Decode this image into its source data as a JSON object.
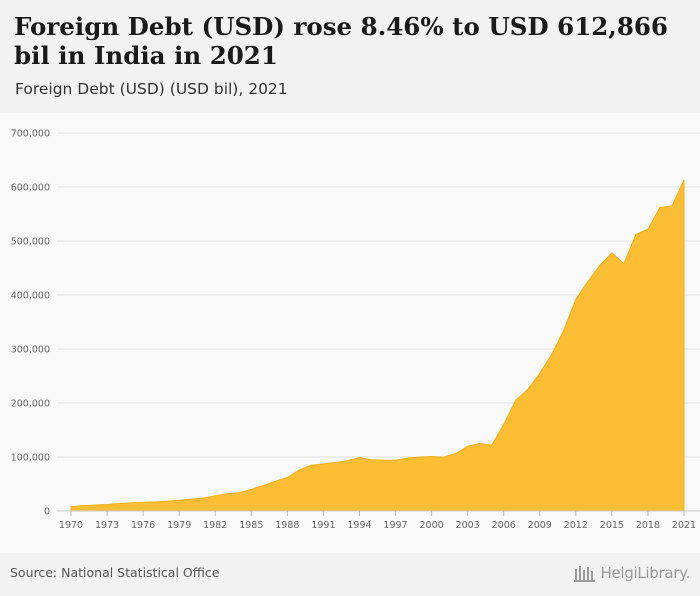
{
  "header": {
    "title": "Foreign Debt (USD) rose 8.46% to USD 612,866 bil in India in 2021",
    "subtitle": "Foreign Debt (USD) (USD bil), 2021"
  },
  "footer": {
    "source": "Source: National Statistical Office",
    "logo_text": "HelgiLibrary."
  },
  "colors": {
    "area_fill": "#fbbd33",
    "area_stroke": "#f5b11d",
    "grid": "#e3e3e3"
  },
  "chart_data": {
    "type": "area",
    "ylim": [
      0,
      700000
    ],
    "y_ticks": [
      0,
      100000,
      200000,
      300000,
      400000,
      500000,
      600000,
      700000
    ],
    "y_tick_labels": [
      "0",
      "100,000",
      "200,000",
      "300,000",
      "400,000",
      "500,000",
      "600,000",
      "700,000"
    ],
    "x_tick_labels": [
      "1970",
      "1973",
      "1976",
      "1979",
      "1982",
      "1985",
      "1988",
      "1991",
      "1994",
      "1997",
      "2000",
      "2003",
      "2006",
      "2009",
      "2012",
      "2015",
      "2018",
      "2021"
    ],
    "x": [
      1970,
      1971,
      1972,
      1973,
      1974,
      1975,
      1976,
      1977,
      1978,
      1979,
      1980,
      1981,
      1982,
      1983,
      1984,
      1985,
      1986,
      1987,
      1988,
      1989,
      1990,
      1991,
      1992,
      1993,
      1994,
      1995,
      1996,
      1997,
      1998,
      1999,
      2000,
      2001,
      2002,
      2003,
      2004,
      2005,
      2006,
      2007,
      2008,
      2009,
      2010,
      2011,
      2012,
      2013,
      2014,
      2015,
      2016,
      2017,
      2018,
      2019,
      2020,
      2021
    ],
    "values": [
      8000,
      10000,
      11000,
      12000,
      14000,
      15000,
      16000,
      17000,
      18000,
      20000,
      22000,
      24000,
      28000,
      32000,
      34000,
      40000,
      47000,
      55000,
      62000,
      76000,
      85000,
      87000,
      90000,
      93000,
      99000,
      95000,
      94000,
      94000,
      98000,
      100000,
      101000,
      100000,
      106000,
      120000,
      125000,
      122000,
      160000,
      205000,
      225000,
      255000,
      290000,
      335000,
      392000,
      425000,
      455000,
      478000,
      458000,
      512000,
      522000,
      562000,
      565000,
      612866
    ],
    "grid": true
  }
}
